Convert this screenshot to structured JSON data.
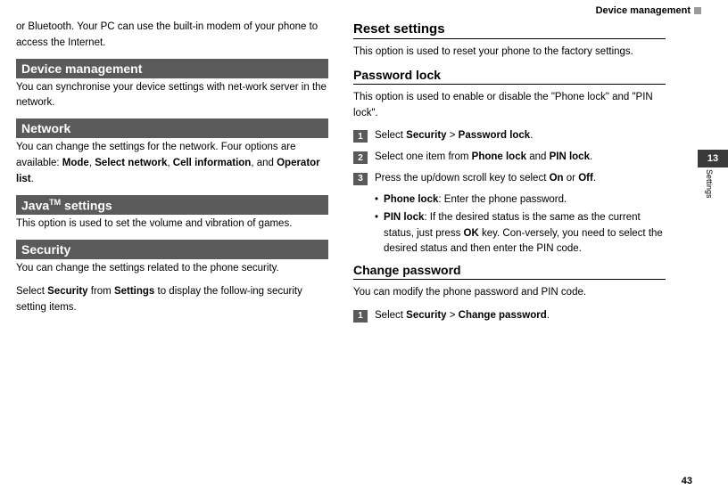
{
  "header": {
    "title": "Device management"
  },
  "side": {
    "chapter": "13",
    "label": "Settings"
  },
  "pageNumber": "43",
  "left": {
    "intro": "or Bluetooth. Your PC can use the built-in modem of your phone to access the Internet.",
    "sections": {
      "deviceMgmt": {
        "title": "Device management",
        "body": "You can synchronise your device settings with net-work server in the network."
      },
      "network": {
        "title": "Network",
        "body_pre": "You can change the settings for the network. Four options are available: ",
        "opt1": "Mode",
        "opt2": "Select network",
        "opt3": "Cell information",
        "opt4": "Operator list",
        "body_post": "."
      },
      "java": {
        "title_pre": "Java",
        "title_sup": "TM",
        "title_post": " settings",
        "body": "This option is used to set the volume and vibration of games."
      },
      "security": {
        "title": "Security",
        "body1": "You can change the settings related to the phone security.",
        "body2_pre": "Select ",
        "body2_b1": "Security",
        "body2_mid": " from ",
        "body2_b2": "Settings",
        "body2_post": " to display the follow-ing security setting items."
      }
    }
  },
  "right": {
    "reset": {
      "title": "Reset settings",
      "body": "This option is used to reset your phone to the factory settings."
    },
    "pwlock": {
      "title": "Password lock",
      "body": "This option is used to enable or disable the \"Phone lock\" and \"PIN lock\".",
      "steps": {
        "s1": {
          "num": "1",
          "pre": "Select ",
          "b1": "Security",
          "mid": " > ",
          "b2": "Password lock",
          "post": "."
        },
        "s2": {
          "num": "2",
          "pre": "Select one item from ",
          "b1": "Phone lock",
          "mid": " and ",
          "b2": "PIN lock",
          "post": "."
        },
        "s3": {
          "num": "3",
          "pre": "Press the up/down scroll key to select ",
          "b1": "On",
          "mid": " or ",
          "b2": "Off",
          "post": "."
        }
      },
      "bullets": {
        "b1": {
          "b": "Phone lock",
          "text": ": Enter the phone password."
        },
        "b2": {
          "b": "PIN lock",
          "text": ": If the desired status is the same as the current status, just press ",
          "b2": "OK",
          "text2": " key. Con-versely, you need to select the desired status and then enter the PIN code."
        }
      }
    },
    "changepw": {
      "title": "Change password",
      "body": "You can modify the phone password and PIN code.",
      "steps": {
        "s1": {
          "num": "1",
          "pre": "Select ",
          "b1": "Security",
          "mid": " > ",
          "b2": "Change password",
          "post": "."
        }
      }
    }
  }
}
